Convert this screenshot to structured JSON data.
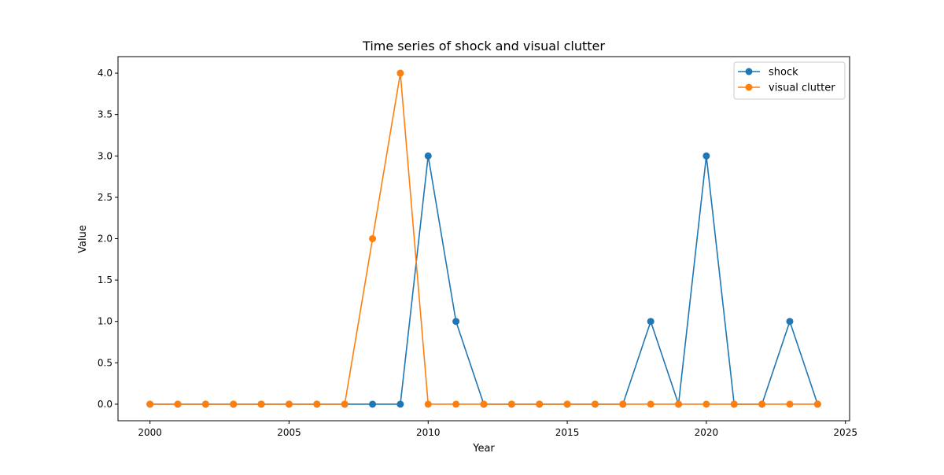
{
  "chart_data": {
    "type": "line",
    "title": "Time series of shock and visual clutter",
    "xlabel": "Year",
    "ylabel": "Value",
    "xlim": [
      1998.85,
      2025.15
    ],
    "ylim": [
      -0.2,
      4.2
    ],
    "xticks": [
      2000,
      2005,
      2010,
      2015,
      2020,
      2025
    ],
    "yticks": [
      0.0,
      0.5,
      1.0,
      1.5,
      2.0,
      2.5,
      3.0,
      3.5,
      4.0
    ],
    "xtick_labels": [
      "2000",
      "2005",
      "2010",
      "2015",
      "2020",
      "2025"
    ],
    "ytick_labels": [
      "0.0",
      "0.5",
      "1.0",
      "1.5",
      "2.0",
      "2.5",
      "3.0",
      "3.5",
      "4.0"
    ],
    "grid": false,
    "legend_position": "top-right",
    "x": [
      2000,
      2001,
      2002,
      2003,
      2004,
      2005,
      2006,
      2007,
      2008,
      2009,
      2010,
      2011,
      2012,
      2013,
      2014,
      2015,
      2016,
      2017,
      2018,
      2019,
      2020,
      2021,
      2022,
      2023,
      2024
    ],
    "series": [
      {
        "name": "shock",
        "color": "#1f77b4",
        "values": [
          0,
          0,
          0,
          0,
          0,
          0,
          0,
          0,
          0,
          0,
          3,
          1,
          0,
          0,
          0,
          0,
          0,
          0,
          1,
          0,
          3,
          0,
          0,
          1,
          0
        ]
      },
      {
        "name": "visual clutter",
        "color": "#ff7f0e",
        "values": [
          0,
          0,
          0,
          0,
          0,
          0,
          0,
          0,
          2,
          4,
          0,
          0,
          0,
          0,
          0,
          0,
          0,
          0,
          0,
          0,
          0,
          0,
          0,
          0,
          0
        ]
      }
    ]
  }
}
